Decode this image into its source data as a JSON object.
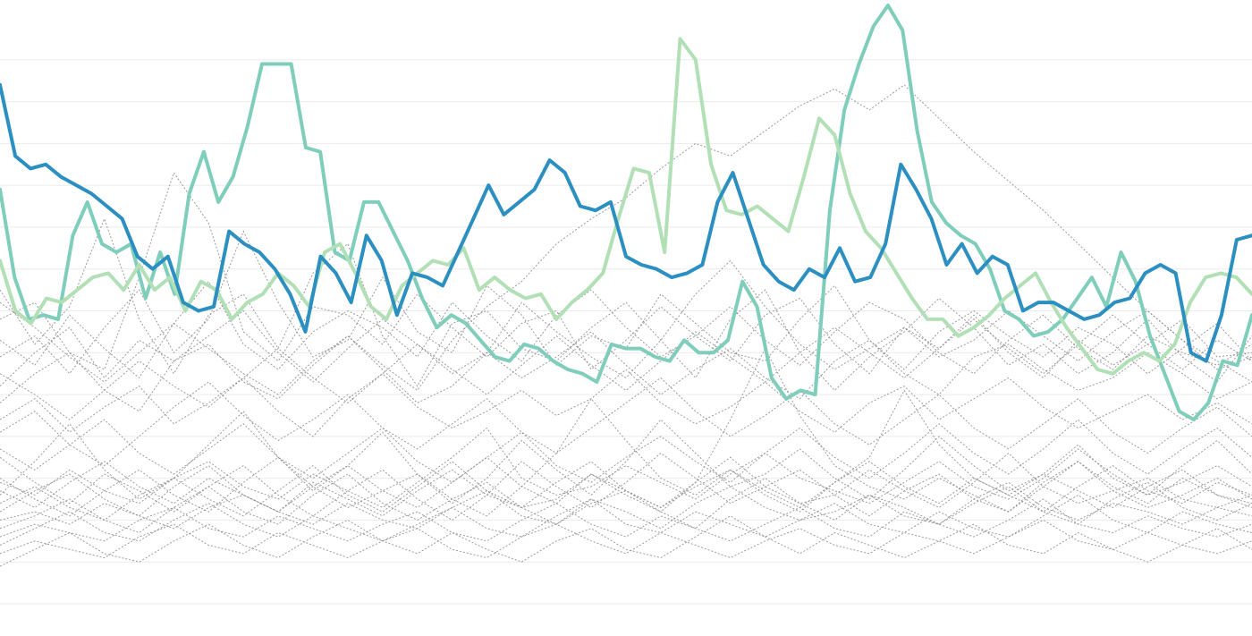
{
  "chart_data": {
    "type": "line",
    "title": "",
    "xlabel": "",
    "ylabel": "",
    "ylim": [
      0,
      14
    ],
    "grid": true,
    "legend": "none",
    "gridlines_y": [
      0,
      1,
      2,
      3,
      4,
      5,
      6,
      7,
      8,
      9,
      10,
      11,
      12,
      13
    ],
    "highlighted_series": [
      {
        "color": "#7fcdbb",
        "values": [
          9.9,
          7.8,
          6.8,
          6.9,
          6.8,
          8.8,
          9.6,
          8.6,
          8.4,
          8.6,
          7.3,
          8.4,
          7.4,
          9.8,
          10.8,
          9.6,
          10.2,
          11.4,
          12.9,
          12.9,
          12.9,
          10.9,
          10.8,
          8.4,
          8.2,
          9.6,
          9.6,
          8.9,
          8.2,
          7.3,
          6.6,
          6.9,
          6.7,
          6.3,
          5.9,
          5.8,
          6.2,
          6.1,
          5.8,
          5.6,
          5.5,
          5.3,
          6.2,
          6.1,
          6.1,
          5.9,
          5.8,
          6.3,
          6.0,
          6.0,
          6.3,
          7.7,
          7.1,
          5.4,
          4.9,
          5.1,
          5.0,
          9.4,
          11.8,
          12.9,
          13.8,
          14.3,
          13.7,
          11.3,
          9.6,
          9.1,
          8.8,
          8.6,
          8.0,
          7.0,
          6.8,
          6.4,
          6.5,
          6.8,
          7.3,
          7.8,
          7.1,
          8.4,
          7.7,
          6.4,
          5.5,
          4.6,
          4.4,
          4.8,
          5.8,
          5.7,
          6.9
        ],
        "visible_range": "full"
      },
      {
        "color": "#b2e0b6",
        "values": [
          8.2,
          7.0,
          6.7,
          7.3,
          7.2,
          7.5,
          7.8,
          7.9,
          7.5,
          8.1,
          7.5,
          7.8,
          7.0,
          7.7,
          7.5,
          6.8,
          7.2,
          7.4,
          7.9,
          7.6,
          7.1,
          8.4,
          8.6,
          7.9,
          7.1,
          6.8,
          7.6,
          7.9,
          8.2,
          8.1,
          8.5,
          7.5,
          7.8,
          7.5,
          7.3,
          7.4,
          6.8,
          7.2,
          7.5,
          7.9,
          9.2,
          10.4,
          10.3,
          8.4,
          13.5,
          13.0,
          10.5,
          9.4,
          9.3,
          9.5,
          9.2,
          8.9,
          10.2,
          11.6,
          11.2,
          9.8,
          8.9,
          8.5,
          7.9,
          7.3,
          6.8,
          6.8,
          6.4,
          6.6,
          6.9,
          7.3,
          7.6,
          7.9,
          7.2,
          6.6,
          6.1,
          5.6,
          5.5,
          5.8,
          6.0,
          5.8,
          6.2,
          7.2,
          7.8,
          7.9,
          7.8,
          7.4
        ],
        "visible_range": "full"
      },
      {
        "color": "#2c8fc1",
        "values": [
          12.4,
          10.7,
          10.4,
          10.5,
          10.2,
          10.0,
          9.8,
          9.5,
          9.2,
          8.3,
          8.0,
          8.3,
          7.2,
          7.0,
          7.1,
          8.9,
          8.6,
          8.4,
          8.0,
          7.4,
          6.5,
          8.3,
          7.9,
          7.2,
          8.8,
          8.2,
          6.9,
          7.9,
          7.8,
          7.6,
          8.4,
          9.2,
          10.0,
          9.3,
          9.6,
          9.9,
          10.6,
          10.3,
          9.5,
          9.4,
          9.6,
          8.3,
          8.1,
          8.0,
          7.8,
          7.9,
          8.1,
          9.6,
          10.3,
          9.2,
          8.1,
          7.7,
          7.5,
          8.0,
          7.8,
          8.5,
          7.7,
          7.8,
          8.6,
          10.5,
          9.9,
          9.2,
          8.1,
          8.6,
          7.9,
          8.3,
          8.1,
          7.0,
          7.2,
          7.2,
          7.0,
          6.8,
          6.9,
          7.2,
          7.3,
          7.9,
          8.1,
          7.9,
          6.0,
          5.8,
          6.9,
          8.7,
          8.8
        ],
        "visible_range": "full"
      }
    ],
    "background_series": [
      {
        "values": [
          7.5,
          6.2,
          7.1,
          9.2,
          6.8,
          5.5,
          6.9,
          7.4,
          6.1,
          7.9,
          8.6,
          6.4,
          5.2,
          6.7,
          7.0,
          6.1,
          5.8,
          6.6,
          7.2,
          6.3,
          5.4,
          6.8,
          7.5,
          6.0,
          5.1,
          5.9,
          6.5,
          7.3,
          6.6,
          5.7,
          6.2,
          5.5,
          6.0,
          6.8,
          5.9,
          5.3,
          6.4
        ]
      },
      {
        "values": [
          6.8,
          7.2,
          6.0,
          5.6,
          7.8,
          10.3,
          9.1,
          6.5,
          5.8,
          7.1,
          6.9,
          6.2,
          7.4,
          6.6,
          5.9,
          6.7,
          7.0,
          5.6,
          6.3,
          7.1,
          6.4,
          5.8,
          6.9,
          7.3,
          6.2,
          5.5,
          6.6,
          6.1,
          6.9,
          6.0,
          5.4,
          6.3,
          5.7,
          6.2,
          6.8,
          5.9,
          6.0
        ]
      },
      {
        "values": [
          5.9,
          6.4,
          5.5,
          6.6,
          7.5,
          6.0,
          6.8,
          8.9,
          7.2,
          5.9,
          6.3,
          7.8,
          6.5,
          6.0,
          7.6,
          6.9,
          5.7,
          6.4,
          6.1,
          7.4,
          6.7,
          6.0,
          5.8,
          6.8,
          7.6,
          6.3,
          5.6,
          6.5,
          7.0,
          6.4,
          5.9,
          6.6,
          6.2,
          5.5,
          6.1,
          6.7,
          5.8
        ]
      },
      {
        "values": [
          6.3,
          5.7,
          6.9,
          6.1,
          5.4,
          6.7,
          7.7,
          6.2,
          5.6,
          6.5,
          7.0,
          6.6,
          5.9,
          7.2,
          6.4,
          5.8,
          6.9,
          7.5,
          6.6,
          5.9,
          6.4,
          7.1,
          6.3,
          5.7,
          6.5,
          7.2,
          6.8,
          6.0,
          5.5,
          6.3,
          6.9,
          6.1,
          5.6,
          6.4,
          6.0,
          5.7,
          6.2
        ]
      },
      {
        "values": [
          5.2,
          6.0,
          6.6,
          5.4,
          6.3,
          5.8,
          6.4,
          7.0,
          6.0,
          5.3,
          6.1,
          6.8,
          6.2,
          5.5,
          6.0,
          7.2,
          6.5,
          5.9,
          5.4,
          6.3,
          7.4,
          8.2,
          7.1,
          6.2,
          5.6,
          6.1,
          6.6,
          5.9,
          6.3,
          7.0,
          6.4,
          5.8,
          6.5,
          7.0,
          6.3,
          5.6,
          5.9
        ]
      },
      {
        "values": [
          4.8,
          5.5,
          6.0,
          5.1,
          4.6,
          5.8,
          6.2,
          5.3,
          4.9,
          5.7,
          6.4,
          5.6,
          4.8,
          5.2,
          6.0,
          5.4,
          5.9,
          6.5,
          5.7,
          5.0,
          5.6,
          6.1,
          5.4,
          4.9,
          5.8,
          6.3,
          5.5,
          5.0,
          5.9,
          6.2,
          5.6,
          5.1,
          5.4,
          6.0,
          5.5,
          4.9,
          5.3
        ]
      },
      {
        "values": [
          4.4,
          4.9,
          4.1,
          4.7,
          5.2,
          4.3,
          4.8,
          5.4,
          4.6,
          4.0,
          4.9,
          5.5,
          4.7,
          4.2,
          4.6,
          5.1,
          4.5,
          4.9,
          5.6,
          4.8,
          4.3,
          4.7,
          5.3,
          4.6,
          4.1,
          4.8,
          5.2,
          4.4,
          4.9,
          5.4,
          4.7,
          4.2,
          4.6,
          5.0,
          4.4,
          4.8,
          4.3
        ]
      },
      {
        "values": [
          2.9,
          2.6,
          3.2,
          2.7,
          2.4,
          3.0,
          3.4,
          2.8,
          2.5,
          3.1,
          2.7,
          2.3,
          2.9,
          3.5,
          4.2,
          3.0,
          2.6,
          2.8,
          3.3,
          2.9,
          2.5,
          3.1,
          3.6,
          3.0,
          2.7,
          2.4,
          2.9,
          3.4,
          2.8,
          2.5,
          3.0,
          3.7,
          3.1,
          2.6,
          2.9,
          3.3,
          2.8
        ]
      },
      {
        "values": [
          2.4,
          2.8,
          2.3,
          2.0,
          2.6,
          3.0,
          2.5,
          2.1,
          2.7,
          3.3,
          2.6,
          2.2,
          2.8,
          3.4,
          2.7,
          2.3,
          2.5,
          3.1,
          2.6,
          2.2,
          2.9,
          3.5,
          2.8,
          2.4,
          2.6,
          3.2,
          2.7,
          2.3,
          2.9,
          3.6,
          2.8,
          2.4,
          2.7,
          3.0,
          2.5,
          2.3,
          2.6
        ]
      },
      {
        "values": [
          2.0,
          2.2,
          1.9,
          2.4,
          2.1,
          1.8,
          2.3,
          2.6,
          2.2,
          1.9,
          2.4,
          2.0,
          1.8,
          2.3,
          2.7,
          2.1,
          1.9,
          2.5,
          2.2,
          1.8,
          2.4,
          2.8,
          2.3,
          2.0,
          2.2,
          2.6,
          2.1,
          1.9,
          2.5,
          2.9,
          2.3,
          2.0,
          2.4,
          2.2,
          1.9,
          2.3,
          2.1
        ]
      },
      {
        "values": [
          1.6,
          1.9,
          1.7,
          1.5,
          2.0,
          2.3,
          1.8,
          1.6,
          2.1,
          1.8,
          1.5,
          1.9,
          2.2,
          1.7,
          1.5,
          2.0,
          2.4,
          1.9,
          1.6,
          2.1,
          1.8,
          1.5,
          1.9,
          2.3,
          1.8,
          1.6,
          2.2,
          1.9,
          1.6,
          2.0,
          2.5,
          1.9,
          1.7,
          2.1,
          1.8,
          1.6,
          1.9
        ]
      },
      {
        "values": [
          1.2,
          1.5,
          1.3,
          1.1,
          1.6,
          1.9,
          1.4,
          1.2,
          1.7,
          1.4,
          1.1,
          1.5,
          1.8,
          1.3,
          1.1,
          1.6,
          1.9,
          1.5,
          1.2,
          1.7,
          1.4,
          1.1,
          1.5,
          1.8,
          1.4,
          1.2,
          1.7,
          1.5,
          1.2,
          1.6,
          2.0,
          1.5,
          1.3,
          1.7,
          1.4,
          1.2,
          1.5
        ]
      },
      {
        "values": [
          3.5,
          2.9,
          2.4,
          3.1,
          2.7,
          2.2,
          2.8,
          3.3,
          2.6,
          2.1,
          2.7,
          3.2,
          2.5,
          2.0,
          2.6,
          3.4,
          2.8,
          2.3,
          2.9,
          3.6,
          3.0,
          2.4,
          2.8,
          3.2,
          2.6,
          2.1,
          2.7,
          3.1,
          2.5,
          2.2,
          2.8,
          3.4,
          2.7,
          2.3,
          2.6,
          3.0,
          2.5
        ]
      },
      {
        "values": [
          2.6,
          3.4,
          4.3,
          3.2,
          2.5,
          3.0,
          3.8,
          4.6,
          3.5,
          2.7,
          3.3,
          4.1,
          3.1,
          2.4,
          3.0,
          3.9,
          3.2,
          2.6,
          3.4,
          4.4,
          3.6,
          2.8,
          3.1,
          3.7,
          3.0,
          2.5,
          3.2,
          4.0,
          3.3,
          2.7,
          3.1,
          3.8,
          3.0,
          2.6,
          3.3,
          3.9,
          3.1
        ]
      },
      {
        "values": [
          1.8,
          2.1,
          2.5,
          2.0,
          1.7,
          2.3,
          2.8,
          2.2,
          1.9,
          2.6,
          3.1,
          2.4,
          2.0,
          2.5,
          2.9,
          2.3,
          1.9,
          2.4,
          2.7,
          2.2,
          1.8,
          2.5,
          3.0,
          2.4,
          2.0,
          2.6,
          2.3,
          1.9,
          2.4,
          2.8,
          2.2,
          1.9,
          2.5,
          2.9,
          2.3,
          2.0,
          2.4
        ]
      },
      {
        "values": [
          3.0,
          2.5,
          2.1,
          2.7,
          3.2,
          2.6,
          2.2,
          2.9,
          3.5,
          2.8,
          2.3,
          2.7,
          3.1,
          2.5,
          2.1,
          2.8,
          3.6,
          4.9,
          3.9,
          3.0,
          2.6,
          3.2,
          2.7,
          2.3,
          2.9,
          3.4,
          2.8,
          2.4,
          3.0,
          2.6,
          2.2,
          2.8,
          3.3,
          2.7,
          2.4,
          2.9,
          2.6
        ]
      },
      {
        "values": [
          2.2,
          2.7,
          3.1,
          2.5,
          2.1,
          2.8,
          3.3,
          2.6,
          2.2,
          2.9,
          2.5,
          2.1,
          2.7,
          3.2,
          2.6,
          2.3,
          2.9,
          3.4,
          2.7,
          2.3,
          2.8,
          3.2,
          2.6,
          2.2,
          2.9,
          3.5,
          5.1,
          3.8,
          3.0,
          2.6,
          3.1,
          2.7,
          2.3,
          2.8,
          3.2,
          2.6,
          2.4
        ]
      },
      {
        "values": [
          1.4,
          1.8,
          2.2,
          1.7,
          1.5,
          2.0,
          2.4,
          1.9,
          1.6,
          2.1,
          1.8,
          1.5,
          1.9,
          2.3,
          1.8,
          1.6,
          2.1,
          2.5,
          1.9,
          1.7,
          2.2,
          1.9,
          1.6,
          2.0,
          2.4,
          1.9,
          1.7,
          2.2,
          1.8,
          1.6,
          2.1,
          2.6,
          2.0,
          1.7,
          2.2,
          1.9,
          1.7
        ]
      },
      {
        "values": [
          2.7,
          2.3,
          2.9,
          3.4,
          2.8,
          2.4,
          3.0,
          2.6,
          2.2,
          2.8,
          3.3,
          2.7,
          2.3,
          2.9,
          3.5,
          2.8,
          2.4,
          3.1,
          2.7,
          2.3,
          2.9,
          4.4,
          6.1,
          4.5,
          3.3,
          2.8,
          2.5,
          3.0,
          2.6,
          2.2,
          2.9,
          3.4,
          2.8,
          2.4,
          3.0,
          2.6,
          2.3
        ]
      },
      {
        "values": [
          7.2,
          6.6,
          5.9,
          5.3,
          6.0,
          6.7,
          6.1,
          5.5,
          5.0,
          5.8,
          6.4,
          5.7,
          5.1,
          6.3,
          7.1,
          7.7,
          8.6,
          9.2,
          9.7,
          10.4,
          11.0,
          10.7,
          11.3,
          11.9,
          12.3,
          11.8,
          12.4,
          11.6,
          10.8,
          10.1,
          9.4,
          8.6,
          7.8,
          7.0,
          6.3,
          5.8,
          5.3
        ]
      },
      {
        "values": [
          4.1,
          4.6,
          3.8,
          3.3,
          4.0,
          4.7,
          5.3,
          4.5,
          3.9,
          4.4,
          5.0,
          4.2,
          3.7,
          4.3,
          4.9,
          4.1,
          3.6,
          4.2,
          4.8,
          5.4,
          4.6,
          4.0,
          4.5,
          5.1,
          4.3,
          3.8,
          4.4,
          5.0,
          4.2,
          3.7,
          4.3,
          4.9,
          4.1,
          3.6,
          4.2,
          4.7,
          4.0
        ]
      },
      {
        "values": [
          3.7,
          3.2,
          3.8,
          4.4,
          3.6,
          3.1,
          3.7,
          4.3,
          3.5,
          3.0,
          3.6,
          4.2,
          3.4,
          2.9,
          3.5,
          4.1,
          3.3,
          2.9,
          3.5,
          4.0,
          3.4,
          2.9,
          3.6,
          4.2,
          3.5,
          3.0,
          3.6,
          4.3,
          3.6,
          3.1,
          3.7,
          4.4,
          3.6,
          3.1,
          3.7,
          4.2,
          3.5
        ]
      },
      {
        "values": [
          5.5,
          5.0,
          4.4,
          5.1,
          5.8,
          5.2,
          4.7,
          5.4,
          6.1,
          5.4,
          4.8,
          5.5,
          6.2,
          5.6,
          5.0,
          5.7,
          6.4,
          5.7,
          5.1,
          5.8,
          6.5,
          5.9,
          5.3,
          6.0,
          6.6,
          6.0,
          5.4,
          6.1,
          6.8,
          6.1,
          5.5,
          6.2,
          6.9,
          6.2,
          5.6,
          6.3,
          5.8
        ]
      },
      {
        "values": [
          0.9,
          1.3,
          1.7,
          1.2,
          1.0,
          1.5,
          1.9,
          1.4,
          1.1,
          1.6,
          2.0,
          1.5,
          1.2,
          1.7,
          1.3,
          1.0,
          1.5,
          1.8,
          1.3,
          1.1,
          1.6,
          2.1,
          1.6,
          1.2,
          1.7,
          1.4,
          1.1,
          1.5,
          1.9,
          1.4,
          1.2,
          1.7,
          1.3,
          1.0,
          1.4,
          1.8,
          1.3
        ]
      }
    ]
  }
}
